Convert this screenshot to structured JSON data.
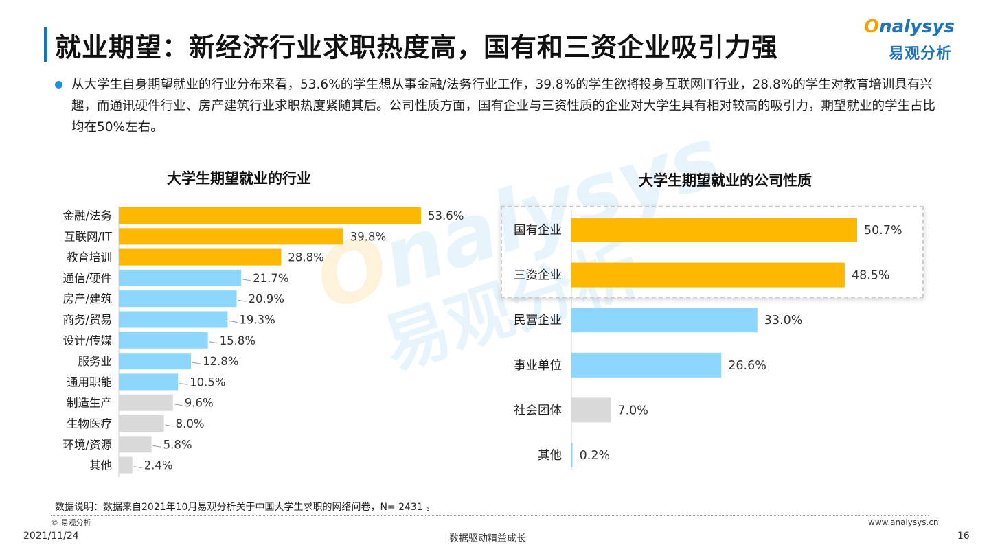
{
  "header": {
    "title": "就业期望：新经济行业求职热度高，国有和三资企业吸引力强",
    "logo_en_o": "O",
    "logo_en_rest": "nalysys",
    "logo_cn": "易观分析"
  },
  "intro": {
    "text": "从大学生自身期望就业的行业分布来看，53.6%的学生想从事金融/法务行业工作，39.8%的学生欲将投身互联网IT行业，28.8%的学生对教育培训具有兴趣，而通讯硬件行业、房产建筑行业求职热度紧随其后。公司性质方面，国有企业与三资性质的企业对大学生具有相对较高的吸引力，期望就业的学生占比均在50%左右。"
  },
  "colors": {
    "accent_orange": "#FFB800",
    "accent_blue": "#8ED7FC",
    "neutral_gray": "#D9D9D9",
    "title_bar": "#1E73BE"
  },
  "chart_data": [
    {
      "type": "bar",
      "orientation": "horizontal",
      "title": "大学生期望就业的行业",
      "categories": [
        "金融/法务",
        "互联网/IT",
        "教育培训",
        "通信/硬件",
        "房产/建筑",
        "商务/贸易",
        "设计/传媒",
        "服务业",
        "通用职能",
        "制造生产",
        "生物医疗",
        "环境/资源",
        "其他"
      ],
      "values": [
        53.6,
        39.8,
        28.8,
        21.7,
        20.9,
        19.3,
        15.8,
        12.8,
        10.5,
        9.6,
        8.0,
        5.8,
        2.4
      ],
      "labels": [
        "53.6%",
        "39.8%",
        "28.8%",
        "21.7%",
        "20.9%",
        "19.3%",
        "15.8%",
        "12.8%",
        "10.5%",
        "9.6%",
        "8.0%",
        "5.8%",
        "2.4%"
      ],
      "color_groups": [
        "orange",
        "orange",
        "orange",
        "blue",
        "blue",
        "blue",
        "blue",
        "blue",
        "blue",
        "gray",
        "gray",
        "gray",
        "gray"
      ],
      "unit": "%",
      "xlim": [
        0,
        60
      ],
      "grid": false,
      "legend": "none"
    },
    {
      "type": "bar",
      "orientation": "horizontal",
      "title": "大学生期望就业的公司性质",
      "categories": [
        "国有企业",
        "三资企业",
        "民营企业",
        "事业单位",
        "社会团体",
        "其他"
      ],
      "values": [
        50.7,
        48.5,
        33.0,
        26.6,
        7.0,
        0.2
      ],
      "labels": [
        "50.7%",
        "48.5%",
        "33.0%",
        "26.6%",
        "7.0%",
        "0.2%"
      ],
      "color_groups": [
        "orange",
        "orange",
        "blue",
        "blue",
        "gray",
        "blue"
      ],
      "unit": "%",
      "xlim": [
        0,
        60
      ],
      "grid": false,
      "legend": "none"
    }
  ],
  "watermark": {
    "en_o": "O",
    "en_rest": "nalysys",
    "cn": "易观分析"
  },
  "footer": {
    "note": "数据说明：数据来自2021年10月易观分析关于中国大学生求职的网络问卷，N= 2431 。",
    "copyright": "© 易观分析",
    "website": "www.analysys.cn",
    "date": "2021/11/24",
    "slogan": "数据驱动精益成长",
    "page": "16"
  }
}
